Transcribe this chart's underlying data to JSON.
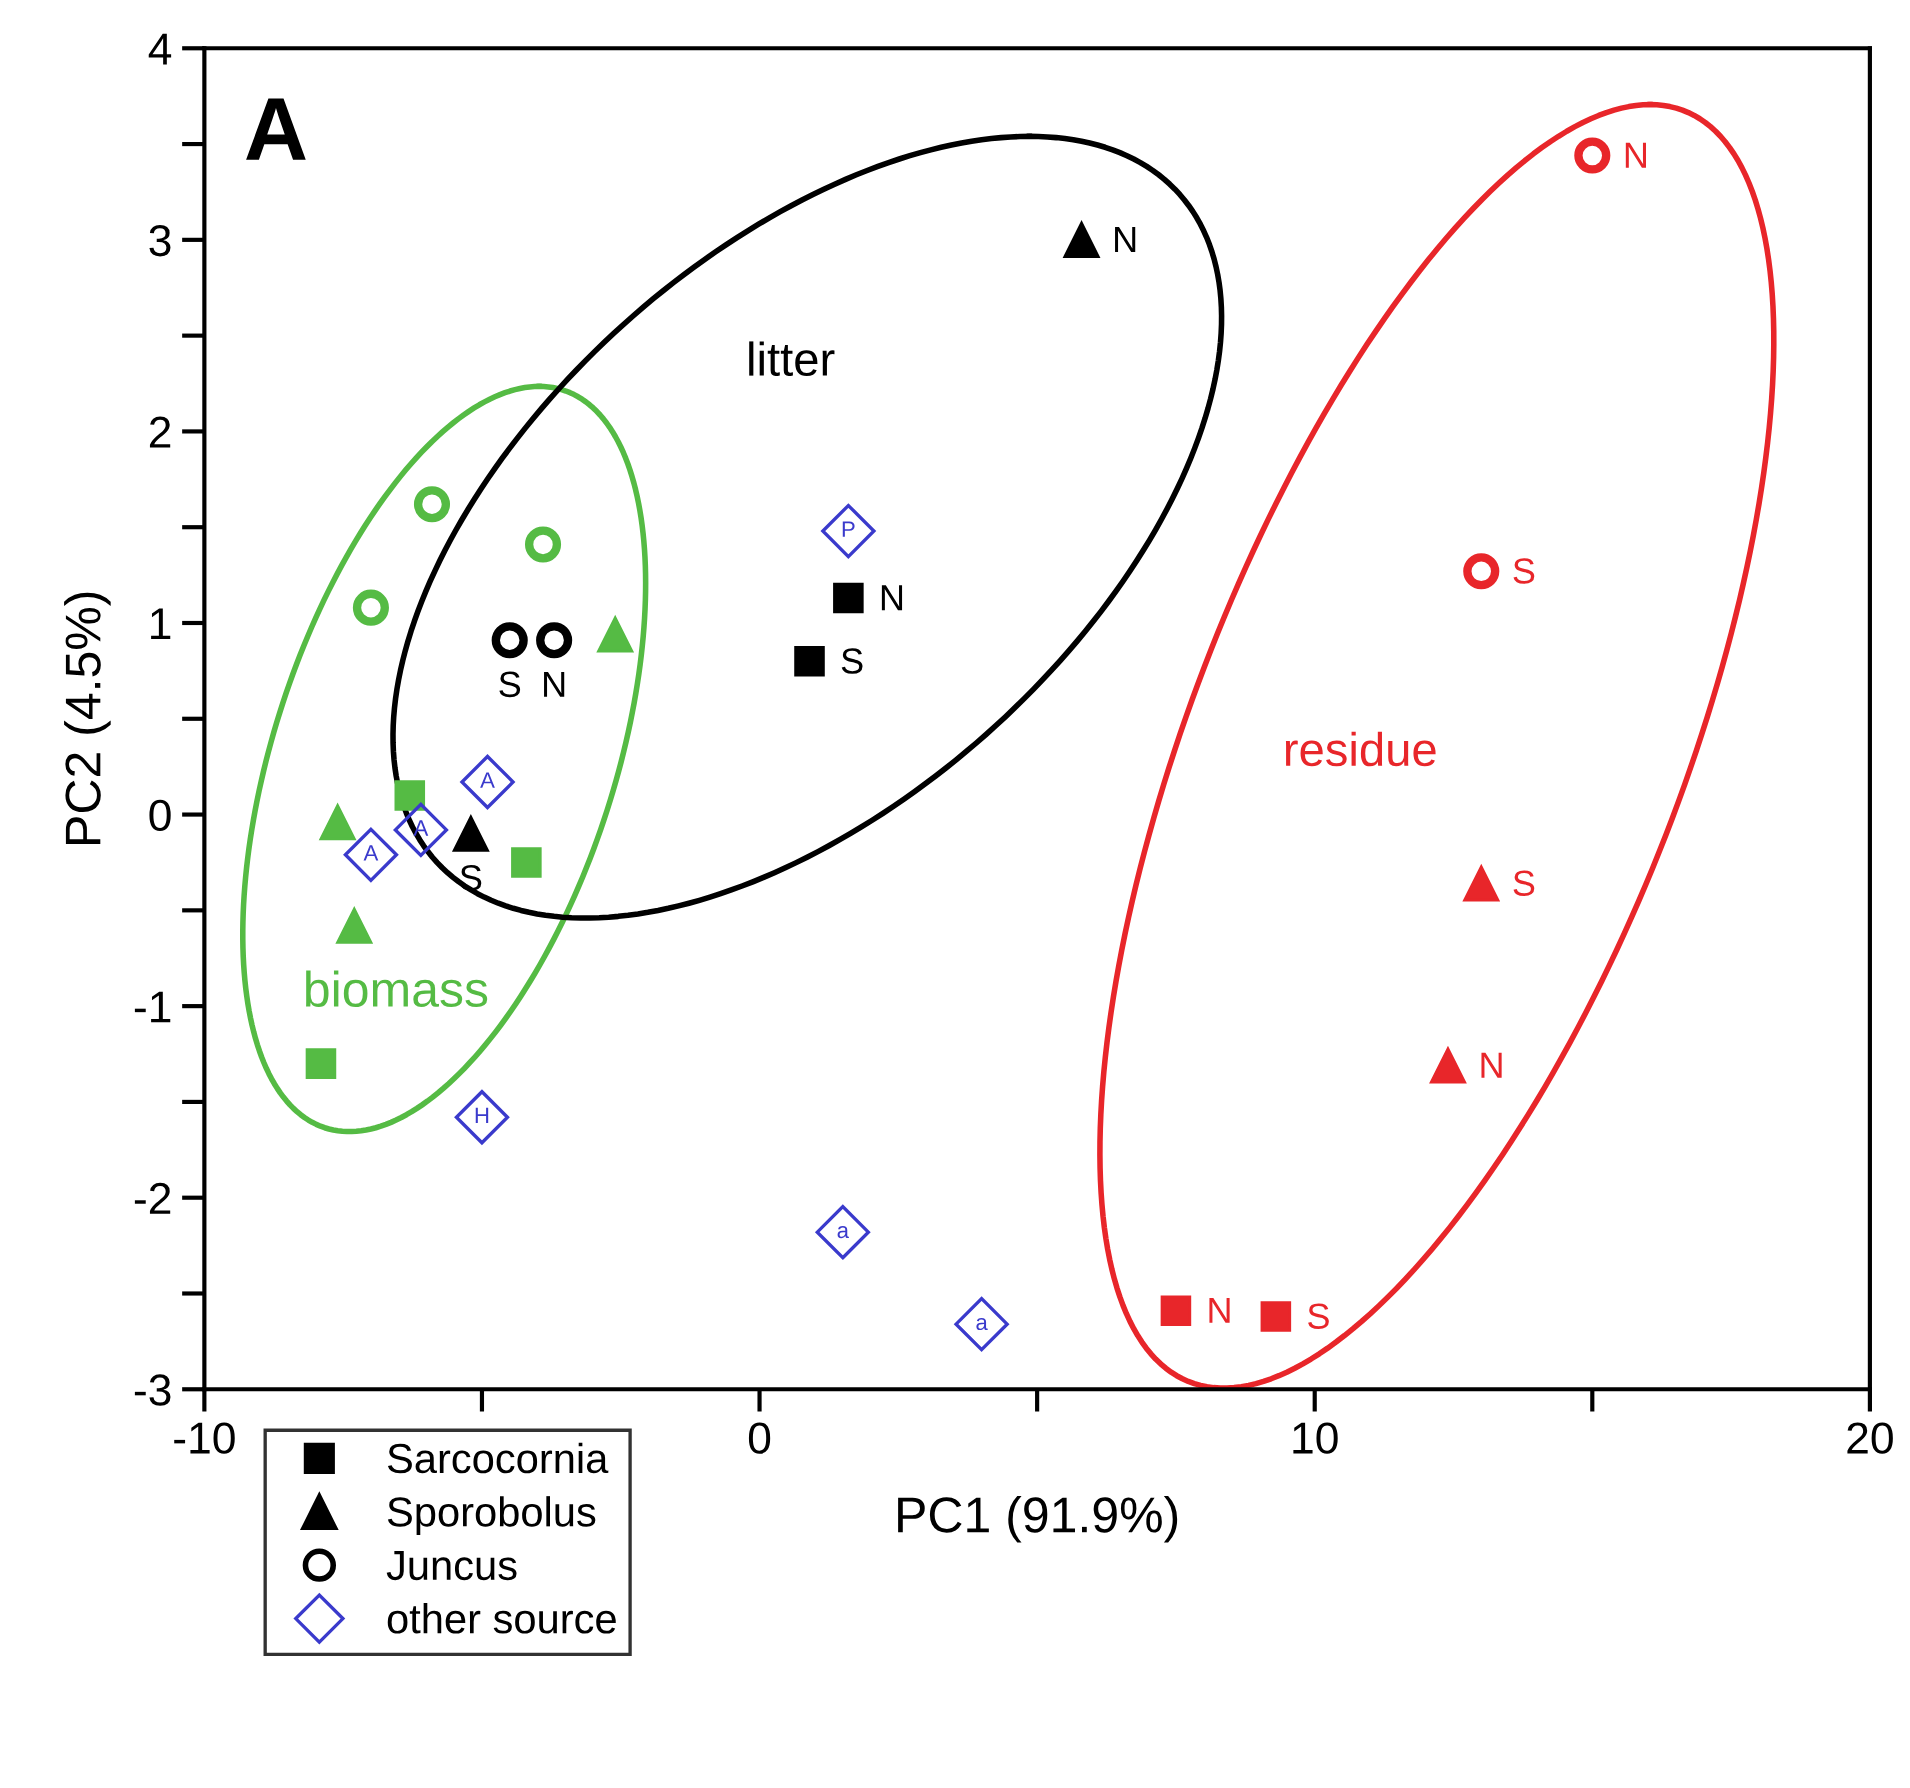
{
  "chart_data": {
    "type": "scatter",
    "xlabel": "PC1 (91.9%)",
    "ylabel": "PC2 (4.5%)",
    "xlim": [
      -10,
      20
    ],
    "ylim": [
      -3,
      4
    ],
    "xticks": [
      -10,
      {
        "value": -5,
        "label": null
      },
      0,
      {
        "value": 5,
        "label": null
      },
      10,
      {
        "value": 15,
        "label": null
      },
      20
    ],
    "yticks": [
      -3,
      {
        "value": -2.5,
        "label": null
      },
      -2,
      {
        "value": -1.5,
        "label": null
      },
      -1,
      {
        "value": -0.5,
        "label": null
      },
      0,
      {
        "value": 0.5,
        "label": null
      },
      1,
      {
        "value": 1.5,
        "label": null
      },
      2,
      {
        "value": 2.5,
        "label": null
      },
      3,
      {
        "value": 3.5,
        "label": null
      },
      4
    ],
    "grid": false,
    "legend": "bottom left",
    "series": [
      {
        "name": "Sarcocornia",
        "marker": "square",
        "color": "#000000",
        "x": [
          -6.3,
          -4.2,
          -7.9,
          1.6,
          0.9,
          7.5,
          9.3
        ],
        "values": [
          0.1,
          -0.25,
          -1.3,
          1.13,
          0.8,
          -2.59,
          -2.62
        ],
        "colors": [
          "#55bb44",
          "#55bb44",
          "#55bb44",
          "#000000",
          "#000000",
          "#e8262a",
          "#e8262a"
        ]
      },
      {
        "name": "Sporobolus",
        "marker": "triangle",
        "color": "#000000",
        "x": [
          -2.6,
          -7.6,
          -7.3,
          -5.2,
          5.8,
          13.0,
          12.4
        ],
        "values": [
          0.94,
          -0.04,
          -0.58,
          -0.1,
          3.0,
          -0.36,
          -1.31
        ],
        "colors": [
          "#55bb44",
          "#55bb44",
          "#55bb44",
          "#000000",
          "#000000",
          "#e8262a",
          "#e8262a"
        ]
      },
      {
        "name": "Juncus",
        "marker": "circle",
        "color": "#000000",
        "x": [
          -5.9,
          -7.0,
          -3.9,
          -4.5,
          -3.7,
          15.0,
          13.0
        ],
        "values": [
          1.62,
          1.08,
          1.41,
          0.91,
          0.91,
          3.44,
          1.27
        ],
        "colors": [
          "#55bb44",
          "#55bb44",
          "#55bb44",
          "#000000",
          "#000000",
          "#e8262a",
          "#e8262a"
        ]
      },
      {
        "name": "other source",
        "marker": "diamond",
        "color": "#3a3acc",
        "x": [
          1.6,
          -4.9,
          -6.1,
          -7.0,
          -5.0,
          1.5,
          4.0
        ],
        "values": [
          1.48,
          0.17,
          -0.08,
          -0.21,
          -1.58,
          -2.18,
          -2.66
        ]
      }
    ],
    "annotations": [
      "A",
      "litter",
      "biomass",
      "residue",
      {
        "text": "N",
        "x": 1.6,
        "y": 1.13
      },
      {
        "text": "S",
        "x": 0.9,
        "y": 0.8
      },
      {
        "text": "N",
        "x": 7.5,
        "y": -2.59
      },
      {
        "text": "S",
        "x": 9.3,
        "y": -2.62
      },
      {
        "text": "S",
        "x": -5.2,
        "y": -0.1
      },
      {
        "text": "N",
        "x": 5.8,
        "y": 3.0
      },
      {
        "text": "S",
        "x": 13.0,
        "y": -0.36
      },
      {
        "text": "N",
        "x": 12.4,
        "y": -1.31
      },
      {
        "text": "S",
        "x": -4.5,
        "y": 0.91
      },
      {
        "text": "N",
        "x": -3.7,
        "y": 0.91
      },
      {
        "text": "N",
        "x": 15.0,
        "y": 3.44
      },
      {
        "text": "S",
        "x": 13.0,
        "y": 1.27
      },
      {
        "text": "P",
        "x": 1.6,
        "y": 1.48
      },
      {
        "text": "A",
        "x": -4.9,
        "y": 0.17
      },
      {
        "text": "A",
        "x": -6.1,
        "y": -0.08
      },
      {
        "text": "A",
        "x": -7.0,
        "y": -0.21
      },
      {
        "text": "H",
        "x": -5.0,
        "y": -1.58
      },
      {
        "text": "a",
        "x": 1.5,
        "y": -2.18
      },
      {
        "text": "a",
        "x": 4.0,
        "y": -2.66
      }
    ]
  }
}
